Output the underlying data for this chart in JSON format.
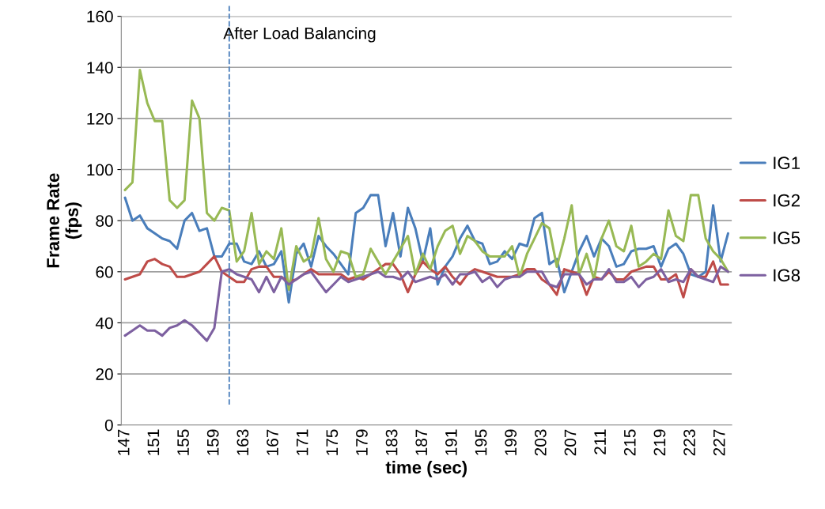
{
  "chart_data": {
    "type": "line",
    "xlabel": "time (sec)",
    "ylabel": "Frame Rate\n(fps)",
    "x": [
      147,
      148,
      149,
      150,
      151,
      152,
      153,
      154,
      155,
      156,
      157,
      158,
      159,
      160,
      161,
      162,
      163,
      164,
      165,
      166,
      167,
      168,
      169,
      170,
      171,
      172,
      173,
      174,
      175,
      176,
      177,
      178,
      179,
      180,
      181,
      182,
      183,
      184,
      185,
      186,
      187,
      188,
      189,
      190,
      191,
      192,
      193,
      194,
      195,
      196,
      197,
      198,
      199,
      200,
      201,
      202,
      203,
      204,
      205,
      206,
      207,
      208,
      209,
      210,
      211,
      212,
      213,
      214,
      215,
      216,
      217,
      218,
      219,
      220,
      221,
      222,
      223,
      224,
      225,
      226,
      227,
      228
    ],
    "xlim": [
      146.5,
      228.5
    ],
    "xticks": [
      147,
      151,
      155,
      159,
      163,
      167,
      171,
      175,
      179,
      183,
      187,
      191,
      195,
      199,
      203,
      207,
      211,
      215,
      219,
      223,
      227
    ],
    "series": [
      {
        "name": "IG1",
        "color": "#4a7ebb",
        "values": [
          89,
          80,
          82,
          77,
          75,
          73,
          72,
          69,
          80,
          83,
          76,
          77,
          66,
          66,
          71,
          71,
          64,
          63,
          68,
          62,
          63,
          68,
          48,
          67,
          71,
          62,
          74,
          70,
          67,
          63,
          59,
          83,
          85,
          90,
          90,
          70,
          83,
          66,
          85,
          77,
          64,
          77,
          55,
          62,
          66,
          73,
          78,
          72,
          71,
          63,
          64,
          68,
          65,
          71,
          70,
          81,
          83,
          63,
          65,
          52,
          60,
          68,
          74,
          66,
          73,
          70,
          62,
          63,
          68,
          69,
          69,
          70,
          62,
          69,
          71,
          67,
          59,
          58,
          60,
          86,
          64,
          75
        ]
      },
      {
        "name": "IG2",
        "color": "#be4b48",
        "values": [
          57,
          58,
          59,
          64,
          65,
          63,
          62,
          58,
          58,
          59,
          60,
          63,
          66,
          60,
          58,
          56,
          56,
          61,
          62,
          62,
          58,
          58,
          56,
          57,
          59,
          61,
          59,
          59,
          59,
          59,
          57,
          58,
          57,
          59,
          61,
          63,
          63,
          59,
          52,
          59,
          64,
          61,
          59,
          62,
          58,
          55,
          59,
          61,
          60,
          59,
          58,
          58,
          58,
          59,
          61,
          61,
          57,
          55,
          51,
          61,
          60,
          59,
          51,
          58,
          57,
          60,
          57,
          57,
          60,
          61,
          62,
          62,
          57,
          57,
          59,
          50,
          61,
          58,
          58,
          64,
          55,
          55
        ]
      },
      {
        "name": "IG5",
        "color": "#98b954",
        "values": [
          92,
          95,
          139,
          126,
          119,
          119,
          88,
          85,
          88,
          127,
          120,
          83,
          80,
          85,
          84,
          64,
          68,
          83,
          63,
          68,
          65,
          77,
          53,
          70,
          64,
          66,
          81,
          65,
          60,
          68,
          67,
          58,
          59,
          69,
          64,
          59,
          64,
          69,
          74,
          59,
          67,
          61,
          70,
          76,
          78,
          67,
          74,
          72,
          68,
          66,
          66,
          66,
          70,
          58,
          67,
          73,
          79,
          77,
          62,
          73,
          86,
          59,
          67,
          57,
          73,
          80,
          70,
          68,
          78,
          62,
          64,
          67,
          65,
          84,
          74,
          72,
          90,
          90,
          73,
          68,
          65,
          60
        ]
      },
      {
        "name": "IG8",
        "color": "#7d60a0",
        "values": [
          35,
          37,
          39,
          37,
          37,
          35,
          38,
          39,
          41,
          39,
          36,
          33,
          38,
          60,
          61,
          59,
          58,
          57,
          52,
          58,
          52,
          58,
          55,
          57,
          59,
          60,
          56,
          52,
          55,
          58,
          56,
          57,
          58,
          59,
          60,
          58,
          58,
          57,
          60,
          56,
          57,
          58,
          57,
          59,
          55,
          59,
          59,
          60,
          56,
          58,
          54,
          57,
          58,
          58,
          60,
          60,
          60,
          55,
          54,
          59,
          59,
          59,
          55,
          57,
          57,
          61,
          56,
          56,
          58,
          54,
          57,
          58,
          61,
          56,
          57,
          56,
          61,
          58,
          57,
          56,
          62,
          60
        ]
      }
    ],
    "ylim": [
      0,
      160
    ],
    "yticks": [
      0,
      20,
      40,
      60,
      80,
      100,
      120,
      140,
      160
    ],
    "grid": "y",
    "legend": "right",
    "marker": "none",
    "line_style": "solid",
    "ref_lines": [
      {
        "axis": "x",
        "value": 161,
        "label": "After Load Balancing",
        "color": "#4a7ebb",
        "line_style": "dashed"
      }
    ]
  }
}
